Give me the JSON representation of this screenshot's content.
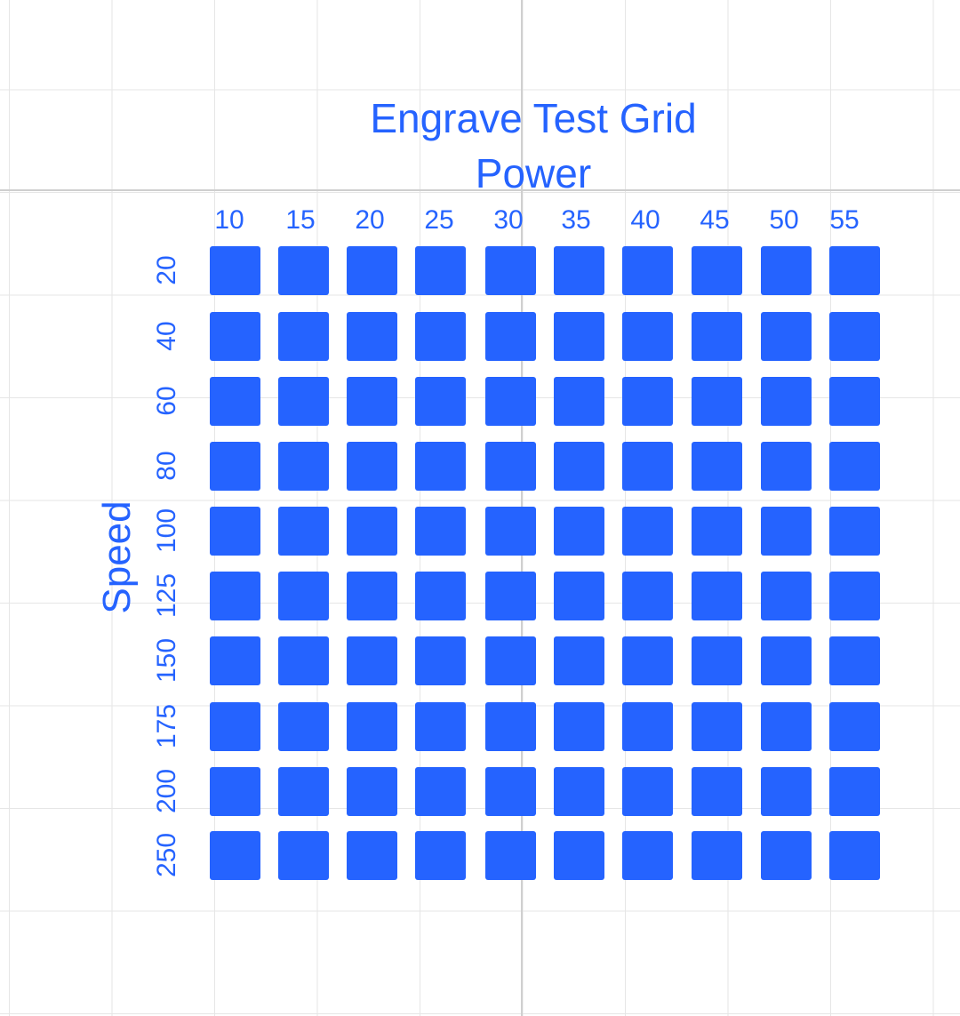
{
  "title": "Engrave Test Grid",
  "power_label": "Power",
  "speed_label": "Speed",
  "power_values": [
    "10",
    "15",
    "20",
    "25",
    "30",
    "35",
    "40",
    "45",
    "50",
    "55"
  ],
  "speed_values": [
    "20",
    "40",
    "60",
    "80",
    "100",
    "125",
    "150",
    "175",
    "200",
    "250"
  ],
  "colors": {
    "accent": "#2563ff",
    "grid": "#e6e6e6",
    "axis": "#cfcfcf",
    "background": "#ffffff"
  }
}
